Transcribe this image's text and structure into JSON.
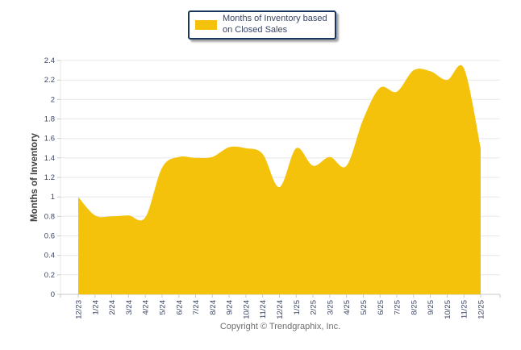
{
  "legend": {
    "label": "Months of Inventory based on Closed Sales",
    "swatch_color": "#F5C20B"
  },
  "y_axis": {
    "title": "Months of Inventory",
    "tick_labels": [
      "0",
      "0.2",
      "0.4",
      "0.6",
      "0.8",
      "1",
      "1.2",
      "1.4",
      "1.6",
      "1.8",
      "2",
      "2.2",
      "2.4"
    ]
  },
  "footer": {
    "copyright": "Copyright © Trendgraphix, Inc."
  },
  "chart_data": {
    "type": "area",
    "title": "Months of Inventory based on Closed Sales",
    "xlabel": "",
    "ylabel": "Months of Inventory",
    "categories": [
      "12/23",
      "1/24",
      "2/24",
      "3/24",
      "4/24",
      "5/24",
      "6/24",
      "7/24",
      "8/24",
      "9/24",
      "10/24",
      "11/24",
      "12/24",
      "1/25",
      "2/25",
      "3/25",
      "4/25",
      "5/25",
      "6/25",
      "7/25",
      "8/25",
      "9/25",
      "10/25",
      "11/25",
      "12/25"
    ],
    "series": [
      {
        "name": "Months of Inventory based on Closed Sales",
        "values": [
          1.0,
          0.81,
          0.8,
          0.81,
          0.79,
          1.3,
          1.41,
          1.4,
          1.41,
          1.51,
          1.5,
          1.44,
          1.1,
          1.5,
          1.32,
          1.41,
          1.32,
          1.8,
          2.12,
          2.08,
          2.3,
          2.29,
          2.2,
          2.32,
          1.5
        ]
      }
    ],
    "ylim": [
      0,
      2.4
    ],
    "ytick_step": 0.2,
    "grid": "horizontal",
    "smooth": true,
    "legend_position": "top-center",
    "colors": {
      "series_fill": "#F5C20B",
      "gridline": "#E7E7E7",
      "axis": "#C9C9C9",
      "tick_label": "#3A4563",
      "axis_title": "#3F3F3F",
      "legend_border": "#17375E",
      "legend_text": "#3A4563",
      "footer_text": "#6E6E6E"
    }
  }
}
